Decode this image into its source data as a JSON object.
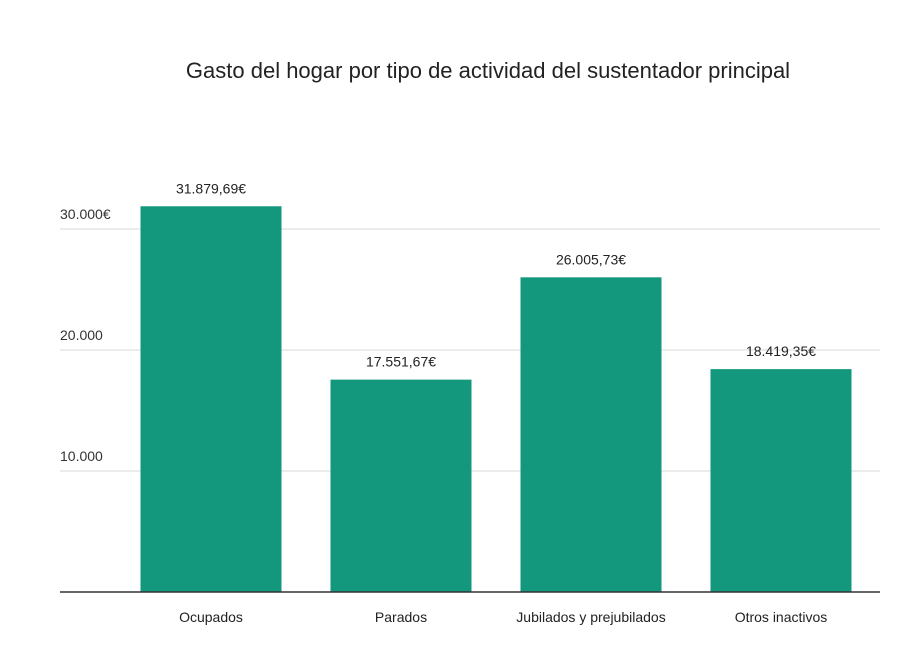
{
  "chart_data": {
    "type": "bar",
    "title": "Gasto del hogar por tipo de actividad del sustentador principal",
    "xlabel": "",
    "ylabel": "",
    "categories": [
      "Ocupados",
      "Parados",
      "Jubilados y prejubilados",
      "Otros inactivos"
    ],
    "values": [
      31879.69,
      17551.67,
      26005.73,
      18419.35
    ],
    "data_labels": [
      "31.879,69€",
      "17.551,67€",
      "26.005,73€",
      "18.419,35€"
    ],
    "ylim": [
      0,
      30000
    ],
    "yticks": [
      10000,
      20000,
      30000
    ],
    "ytick_labels": [
      "10.000",
      "20.000",
      "30.000€"
    ],
    "grid": true,
    "legend": "none",
    "bar_color": "#13977d"
  }
}
